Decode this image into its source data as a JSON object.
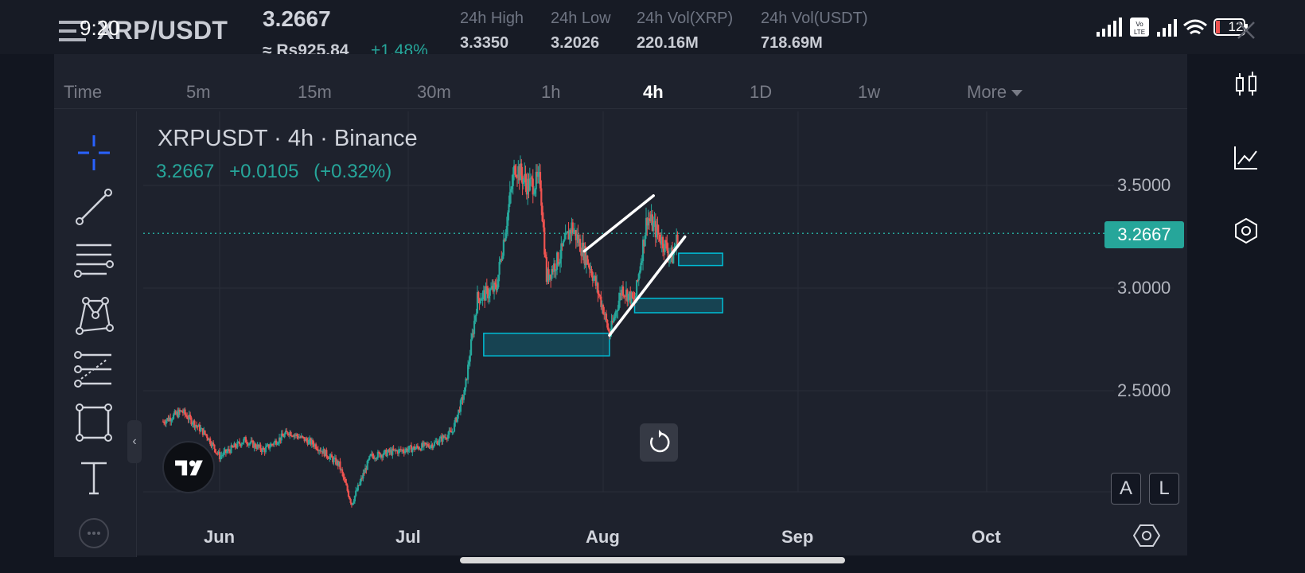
{
  "status_bar": {
    "time": "9:20",
    "battery": "12",
    "network_badge": "Vo LTE"
  },
  "header": {
    "pair": "XRP/USDT",
    "last_price": "3.2667",
    "local_price": "≈ Rs925.84",
    "change_pct": "+1.48%",
    "stats": [
      {
        "label": "24h High",
        "value": "3.3350"
      },
      {
        "label": "24h Low",
        "value": "3.2026"
      },
      {
        "label": "24h Vol(XRP)",
        "value": "220.16M"
      },
      {
        "label": "24h Vol(USDT)",
        "value": "718.69M"
      }
    ]
  },
  "timeframes": [
    "Time",
    "5m",
    "15m",
    "30m",
    "1h",
    "4h",
    "1D",
    "1w",
    "More"
  ],
  "active_timeframe": "4h",
  "tools": [
    "crosshair-icon",
    "trend-line-icon",
    "horizontal-lines-icon",
    "pattern-icon",
    "fib-icon",
    "rectangle-icon",
    "text-icon"
  ],
  "right_rail": [
    "chart-type-icon",
    "indicators-icon",
    "settings-hex-icon"
  ],
  "scale_buttons": {
    "auto": "A",
    "log": "L"
  },
  "chart_data": {
    "type": "candlestick",
    "symbol_title": "XRPUSDT · 4h · Binance",
    "last": "3.2667",
    "change": "+0.0105",
    "change_pct": "(+0.32%)",
    "y_ticks": [
      "3.5000",
      "3.0000",
      "2.5000"
    ],
    "y_tick_values": [
      3.5,
      3.0,
      2.5
    ],
    "ylim": [
      2.0,
      3.7
    ],
    "current_price": 3.2667,
    "current_price_label": "3.2667",
    "x_ticks": [
      "Jun",
      "Jul",
      "Aug",
      "Sep",
      "Oct"
    ],
    "grid": true,
    "price_path": [
      [
        "May 23",
        2.35
      ],
      [
        "May 26",
        2.4
      ],
      [
        "May 30",
        2.28
      ],
      [
        "Jun 1",
        2.18
      ],
      [
        "Jun 5",
        2.26
      ],
      [
        "Jun 8",
        2.21
      ],
      [
        "Jun 12",
        2.3
      ],
      [
        "Jun 16",
        2.24
      ],
      [
        "Jun 20",
        2.14
      ],
      [
        "Jun 22",
        1.95
      ],
      [
        "Jun 25",
        2.18
      ],
      [
        "Jun 28",
        2.2
      ],
      [
        "Jul 2",
        2.22
      ],
      [
        "Jul 5",
        2.24
      ],
      [
        "Jul 8",
        2.3
      ],
      [
        "Jul 10",
        2.5
      ],
      [
        "Jul 12",
        2.95
      ],
      [
        "Jul 15",
        3.0
      ],
      [
        "Jul 17",
        3.4
      ],
      [
        "Jul 18",
        3.6
      ],
      [
        "Jul 20",
        3.5
      ],
      [
        "Jul 22",
        3.52
      ],
      [
        "Jul 23",
        3.05
      ],
      [
        "Jul 25",
        3.15
      ],
      [
        "Jul 27",
        3.3
      ],
      [
        "Jul 30",
        3.1
      ],
      [
        "Aug 1",
        2.9
      ],
      [
        "Aug 2",
        2.77
      ],
      [
        "Aug 4",
        3.0
      ],
      [
        "Aug 6",
        2.93
      ],
      [
        "Aug 8",
        3.35
      ],
      [
        "Aug 10",
        3.25
      ],
      [
        "Aug 12",
        3.15
      ],
      [
        "Aug 13",
        3.27
      ]
    ],
    "annotations": {
      "channel_lines": [
        {
          "from": [
            "Jul 29",
            3.18
          ],
          "to": [
            "Aug 9",
            3.45
          ]
        },
        {
          "from": [
            "Aug 2",
            2.77
          ],
          "to": [
            "Aug 14",
            3.25
          ]
        }
      ],
      "zones": [
        {
          "from_date": "Jul 13",
          "to_date": "Aug 2",
          "low": 2.67,
          "high": 2.78
        },
        {
          "from_date": "Aug 6",
          "to_date": "Aug 20",
          "low": 2.88,
          "high": 2.95
        },
        {
          "from_date": "Aug 13",
          "to_date": "Aug 20",
          "low": 3.11,
          "high": 3.17
        }
      ]
    }
  },
  "colors": {
    "up": "#26a69a",
    "down": "#ef5350",
    "accent": "#2962ff",
    "zone": "#00bcd4"
  }
}
